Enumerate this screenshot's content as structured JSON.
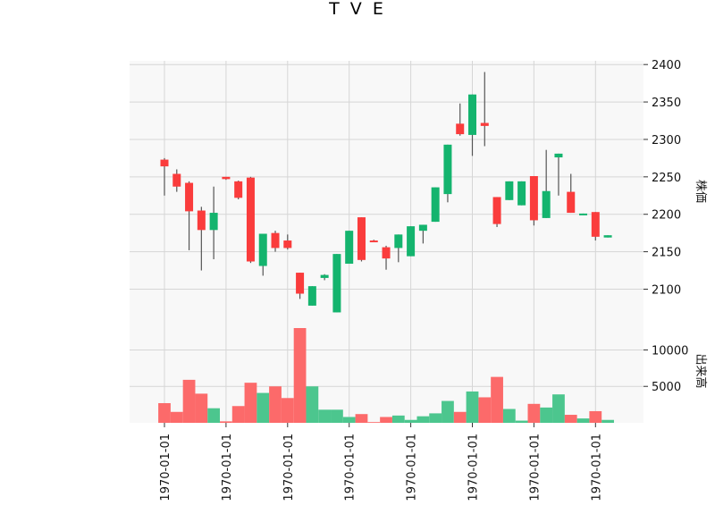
{
  "chart_data": {
    "type": "candlestick",
    "title": "T V E",
    "price_axis_label": "株価",
    "volume_axis_label": "出来高",
    "x_tick_labels": [
      "1970-01-01",
      "1970-01-01",
      "1970-01-01",
      "1970-01-01",
      "1970-01-01",
      "1970-01-01",
      "1970-01-01",
      "1970-01-01"
    ],
    "price_ticks": [
      2100,
      2150,
      2200,
      2250,
      2300,
      2350,
      2400
    ],
    "price_ylim": [
      2060,
      2405
    ],
    "volume_ticks": [
      5000,
      10000
    ],
    "volume_ylim": [
      0,
      13000
    ],
    "up_color": "#14b46e",
    "down_color": "#fa3c3c",
    "up_volume_color": "#4cc68e",
    "down_volume_color": "#fc6a6a",
    "candles": [
      {
        "open": 2264,
        "high": 2275,
        "low": 2225,
        "close": 2273,
        "volume": 2700,
        "dir": "down"
      },
      {
        "open": 2237,
        "high": 2260,
        "low": 2230,
        "close": 2254,
        "volume": 1500,
        "dir": "down"
      },
      {
        "open": 2204,
        "high": 2244,
        "low": 2152,
        "close": 2242,
        "volume": 5900,
        "dir": "down"
      },
      {
        "open": 2179,
        "high": 2210,
        "low": 2125,
        "close": 2205,
        "volume": 4000,
        "dir": "down"
      },
      {
        "open": 2179,
        "high": 2237,
        "low": 2140,
        "close": 2202,
        "volume": 2000,
        "dir": "up"
      },
      {
        "open": 2247,
        "high": 2250,
        "low": 2246,
        "close": 2250,
        "volume": 200,
        "dir": "down"
      },
      {
        "open": 2222,
        "high": 2245,
        "low": 2220,
        "close": 2244,
        "volume": 2300,
        "dir": "down"
      },
      {
        "open": 2137,
        "high": 2250,
        "low": 2135,
        "close": 2249,
        "volume": 5500,
        "dir": "down"
      },
      {
        "open": 2131,
        "high": 2174,
        "low": 2118,
        "close": 2174,
        "volume": 4100,
        "dir": "up"
      },
      {
        "open": 2155,
        "high": 2178,
        "low": 2150,
        "close": 2175,
        "volume": 5000,
        "dir": "down"
      },
      {
        "open": 2155,
        "high": 2173,
        "low": 2153,
        "close": 2165,
        "volume": 3400,
        "dir": "down"
      },
      {
        "open": 2094,
        "high": 2122,
        "low": 2087,
        "close": 2122,
        "volume": 13000,
        "dir": "down"
      },
      {
        "open": 2078,
        "high": 2104,
        "low": 2078,
        "close": 2104,
        "volume": 5000,
        "dir": "up"
      },
      {
        "open": 2115,
        "high": 2120,
        "low": 2112,
        "close": 2119,
        "volume": 1800,
        "dir": "up"
      },
      {
        "open": 2069,
        "high": 2147,
        "low": 2069,
        "close": 2147,
        "volume": 1800,
        "dir": "up"
      },
      {
        "open": 2134,
        "high": 2178,
        "low": 2134,
        "close": 2178,
        "volume": 800,
        "dir": "up"
      },
      {
        "open": 2139,
        "high": 2196,
        "low": 2137,
        "close": 2196,
        "volume": 1200,
        "dir": "down"
      },
      {
        "open": 2164,
        "high": 2166,
        "low": 2163,
        "close": 2165,
        "volume": 100,
        "dir": "down"
      },
      {
        "open": 2141,
        "high": 2158,
        "low": 2126,
        "close": 2156,
        "volume": 800,
        "dir": "down"
      },
      {
        "open": 2155,
        "high": 2173,
        "low": 2136,
        "close": 2173,
        "volume": 1000,
        "dir": "up"
      },
      {
        "open": 2144,
        "high": 2184,
        "low": 2144,
        "close": 2184,
        "volume": 400,
        "dir": "up"
      },
      {
        "open": 2178,
        "high": 2186,
        "low": 2161,
        "close": 2186,
        "volume": 900,
        "dir": "up"
      },
      {
        "open": 2190,
        "high": 2236,
        "low": 2190,
        "close": 2236,
        "volume": 1300,
        "dir": "up"
      },
      {
        "open": 2227,
        "high": 2293,
        "low": 2216,
        "close": 2293,
        "volume": 3000,
        "dir": "up"
      },
      {
        "open": 2307,
        "high": 2348,
        "low": 2305,
        "close": 2321,
        "volume": 1500,
        "dir": "down"
      },
      {
        "open": 2306,
        "high": 2360,
        "low": 2278,
        "close": 2360,
        "volume": 4300,
        "dir": "up"
      },
      {
        "open": 2318,
        "high": 2390,
        "low": 2291,
        "close": 2322,
        "volume": 3500,
        "dir": "down"
      },
      {
        "open": 2187,
        "high": 2223,
        "low": 2183,
        "close": 2223,
        "volume": 6300,
        "dir": "down"
      },
      {
        "open": 2219,
        "high": 2244,
        "low": 2219,
        "close": 2244,
        "volume": 1900,
        "dir": "up"
      },
      {
        "open": 2212,
        "high": 2244,
        "low": 2212,
        "close": 2244,
        "volume": 300,
        "dir": "up"
      },
      {
        "open": 2192,
        "high": 2251,
        "low": 2185,
        "close": 2251,
        "volume": 2600,
        "dir": "down"
      },
      {
        "open": 2195,
        "high": 2286,
        "low": 2195,
        "close": 2231,
        "volume": 2100,
        "dir": "up"
      },
      {
        "open": 2276,
        "high": 2281,
        "low": 2225,
        "close": 2281,
        "volume": 3900,
        "dir": "up"
      },
      {
        "open": 2202,
        "high": 2254,
        "low": 2202,
        "close": 2230,
        "volume": 1100,
        "dir": "down"
      },
      {
        "open": 2200,
        "high": 2201,
        "low": 2199,
        "close": 2201,
        "volume": 600,
        "dir": "up"
      },
      {
        "open": 2170,
        "high": 2203,
        "low": 2165,
        "close": 2203,
        "volume": 1600,
        "dir": "down"
      },
      {
        "open": 2169,
        "high": 2172,
        "low": 2169,
        "close": 2172,
        "volume": 400,
        "dir": "up"
      }
    ]
  }
}
